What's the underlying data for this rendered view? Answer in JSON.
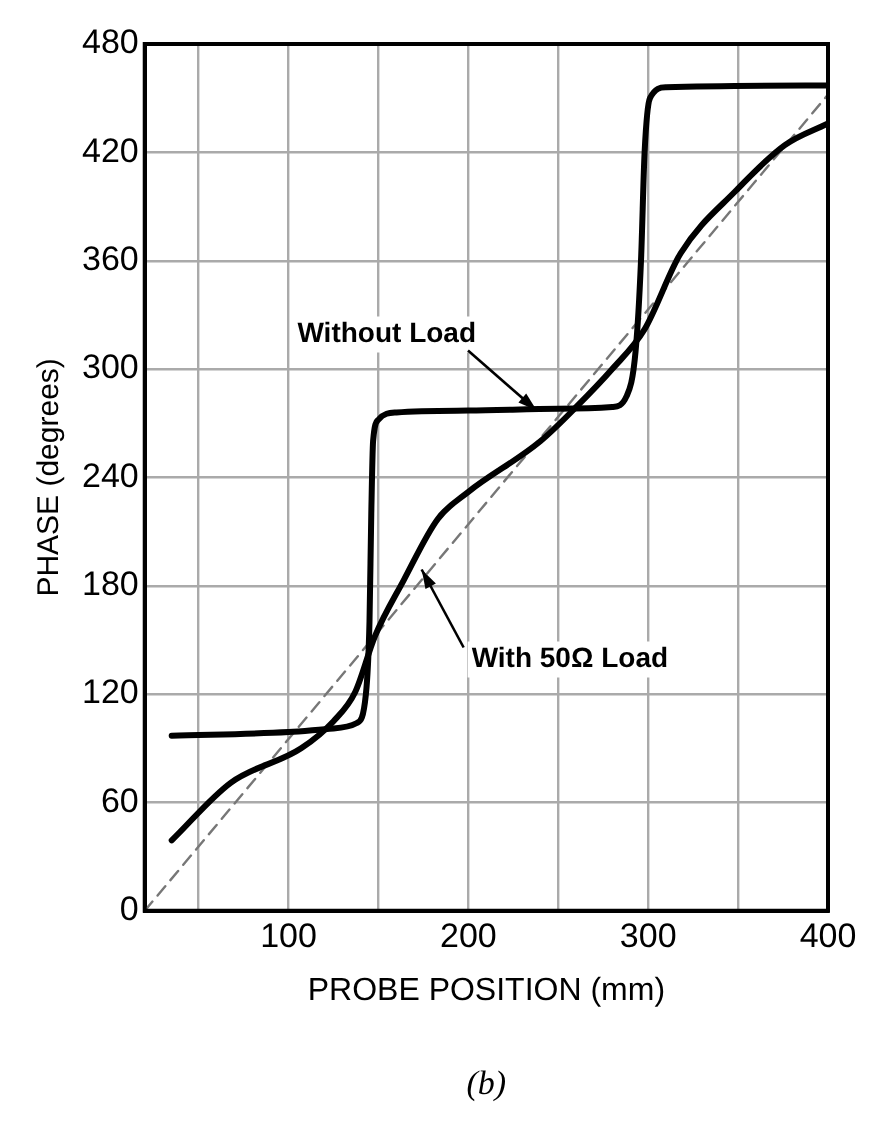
{
  "chart_data": {
    "type": "line",
    "xlabel": "PROBE POSITION (mm)",
    "ylabel": "PHASE (degrees)",
    "xlim": [
      20,
      400
    ],
    "xticks": [
      {
        "value": 50,
        "label": null
      },
      100,
      {
        "value": 150,
        "label": null
      },
      200,
      {
        "value": 250,
        "label": null
      },
      300,
      {
        "value": 350,
        "label": null
      },
      400
    ],
    "ylim": [
      0,
      480
    ],
    "yticks": [
      0,
      60,
      120,
      180,
      240,
      300,
      360,
      420,
      480
    ],
    "grid": true,
    "legend": false,
    "marker": "none",
    "series": [
      {
        "color": "#000000",
        "x": [
          35,
          100,
          125,
          138,
          143,
          145,
          146,
          147,
          150,
          160,
          200,
          250,
          280,
          288,
          293,
          296,
          298,
          301,
          310,
          400
        ],
        "values": [
          97,
          99,
          101,
          104,
          120,
          160,
          220,
          260,
          272,
          276,
          277,
          278,
          279,
          285,
          310,
          360,
          420,
          450,
          456,
          457
        ]
      },
      {
        "color": "#000000",
        "x": [
          35,
          68,
          107,
          125,
          137,
          148,
          164,
          183,
          200,
          240,
          260,
          280,
          298,
          318,
          349,
          376,
          400
        ],
        "values": [
          39,
          71,
          90,
          105,
          121,
          152,
          183,
          217,
          232,
          260,
          279,
          300,
          322,
          364,
          399,
          424,
          436
        ]
      },
      {
        "color": "#777777",
        "line_style": "dashed",
        "x": [
          20,
          400
        ],
        "values": [
          0,
          452
        ]
      }
    ],
    "annotations": [
      {
        "text": "Without Load",
        "x": 238,
        "y": 277
      },
      {
        "text": "With 50Ω Load",
        "x": 174,
        "y": 189
      },
      "(b)"
    ]
  }
}
